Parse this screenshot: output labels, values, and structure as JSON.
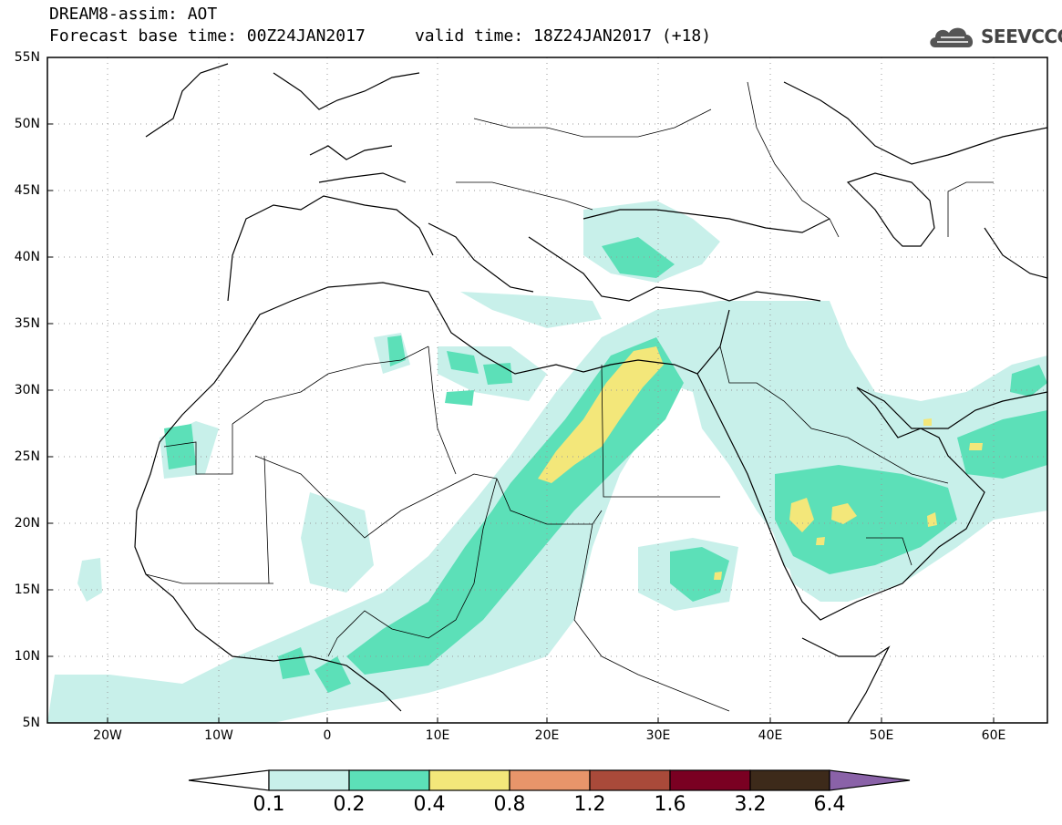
{
  "header": {
    "title_line1": "DREAM8-assim: AOT",
    "title_line2": "Forecast base time: 00Z24JAN2017     valid time: 18Z24JAN2017 (+18)"
  },
  "logo": {
    "text": "SEEVCCC",
    "icon": "cloud-icon"
  },
  "map": {
    "lat_labels": [
      "55N",
      "50N",
      "45N",
      "40N",
      "35N",
      "30N",
      "25N",
      "20N",
      "15N",
      "10N",
      "5N"
    ],
    "lon_labels": [
      "20W",
      "10W",
      "0",
      "10E",
      "20E",
      "30E",
      "40E",
      "50E",
      "60E"
    ]
  },
  "colorbar": {
    "labels": [
      "0.1",
      "0.2",
      "0.4",
      "0.8",
      "1.2",
      "1.6",
      "3.2",
      "6.4"
    ],
    "colors": [
      "#ffffff",
      "#c8f0ea",
      "#5ce0b8",
      "#f3e77a",
      "#e8956a",
      "#a94a3a",
      "#7a0022",
      "#3d2a1a",
      "#8a62a8"
    ]
  }
}
